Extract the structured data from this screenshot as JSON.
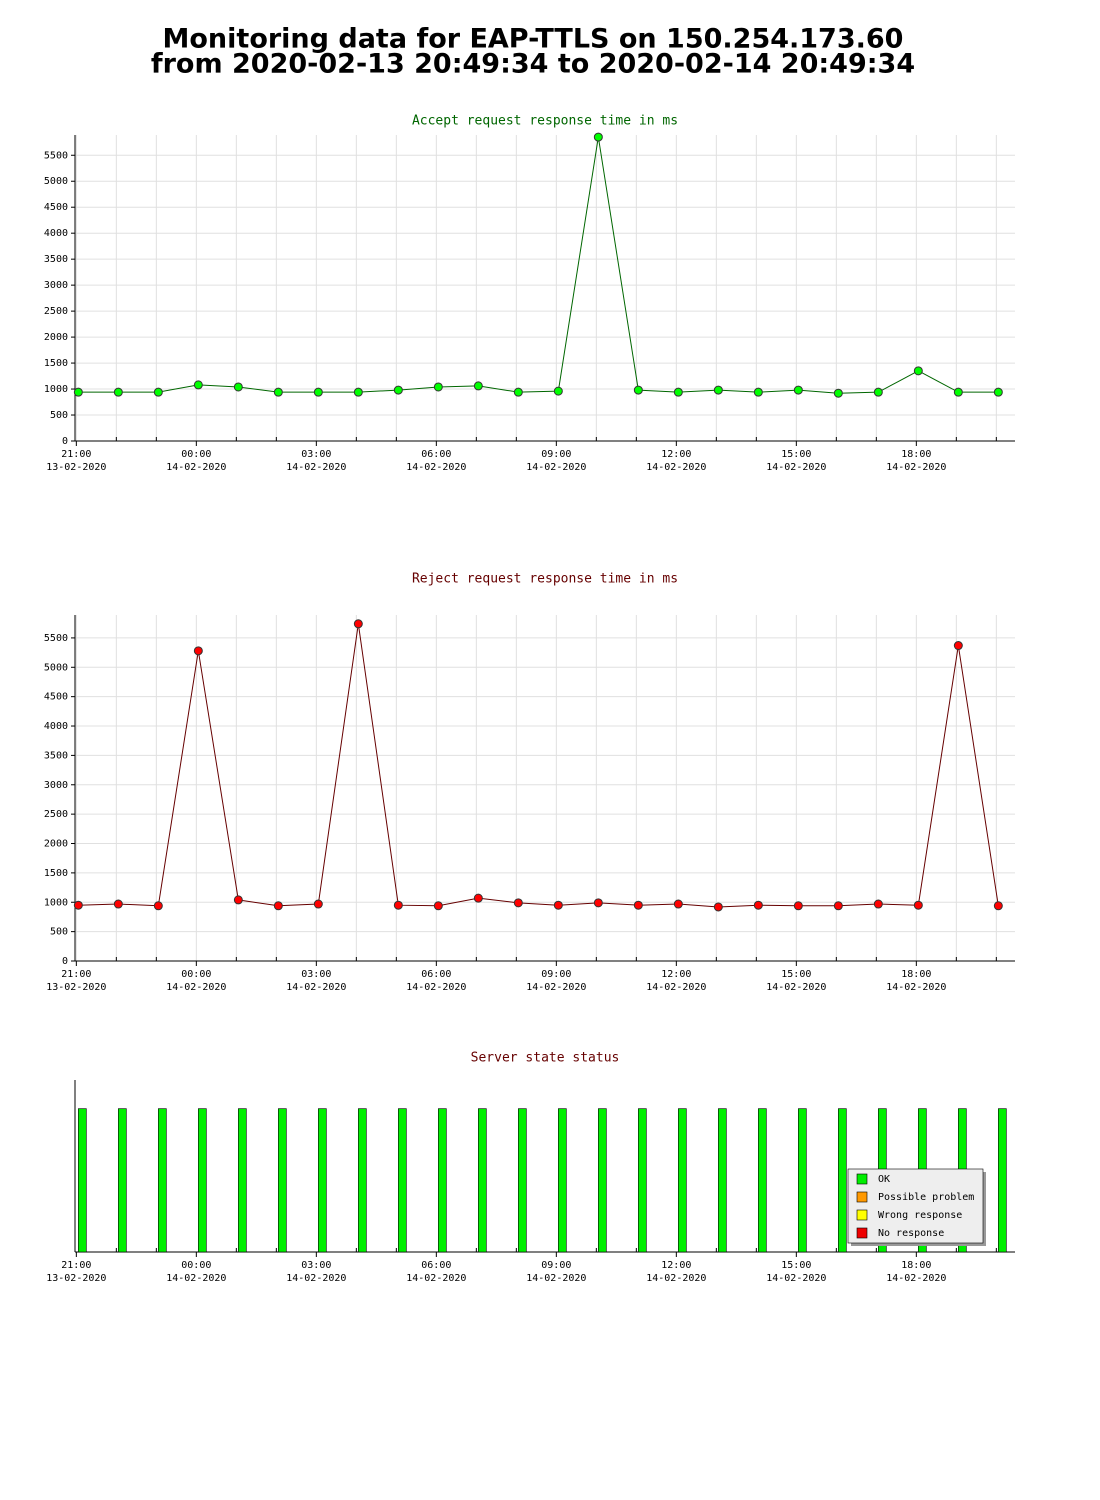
{
  "title": [
    "Monitoring data for EAP-TTLS on 150.254.173.60",
    "from 2020-02-13 20:49:34 to 2020-02-14 20:49:34"
  ],
  "chart_data": [
    {
      "type": "line",
      "title": "Accept request response time in ms",
      "title_color": "#006600",
      "grid": true,
      "x": [
        "2020-02-13 21:03",
        "2020-02-13 22:03",
        "2020-02-13 23:03",
        "2020-02-14 00:03",
        "2020-02-14 01:03",
        "2020-02-14 02:03",
        "2020-02-14 03:03",
        "2020-02-14 04:03",
        "2020-02-14 05:03",
        "2020-02-14 06:03",
        "2020-02-14 07:03",
        "2020-02-14 08:03",
        "2020-02-14 09:03",
        "2020-02-14 10:03",
        "2020-02-14 11:03",
        "2020-02-14 12:03",
        "2020-02-14 13:03",
        "2020-02-14 14:03",
        "2020-02-14 15:03",
        "2020-02-14 16:03",
        "2020-02-14 17:03",
        "2020-02-14 18:03",
        "2020-02-14 19:03",
        "2020-02-14 20:03"
      ],
      "series": [
        {
          "color": "#00ff00",
          "line_color": "#006600",
          "values": [
            940,
            940,
            940,
            1080,
            1040,
            940,
            940,
            940,
            980,
            1040,
            1060,
            940,
            960,
            5850,
            980,
            940,
            980,
            940,
            980,
            920,
            940,
            1350,
            940,
            940
          ]
        }
      ],
      "xlim": [
        "2020-02-13 20:58",
        "2020-02-14 20:28"
      ],
      "xticks": [
        {
          "value": "2020-02-13 21:00",
          "label": [
            "21:00",
            "13-02-2020"
          ]
        },
        {
          "value": "2020-02-14 00:00",
          "label": [
            "00:00",
            "14-02-2020"
          ]
        },
        {
          "value": "2020-02-14 03:00",
          "label": [
            "03:00",
            "14-02-2020"
          ]
        },
        {
          "value": "2020-02-14 06:00",
          "label": [
            "06:00",
            "14-02-2020"
          ]
        },
        {
          "value": "2020-02-14 09:00",
          "label": [
            "09:00",
            "14-02-2020"
          ]
        },
        {
          "value": "2020-02-14 12:00",
          "label": [
            "12:00",
            "14-02-2020"
          ]
        },
        {
          "value": "2020-02-14 15:00",
          "label": [
            "15:00",
            "14-02-2020"
          ]
        },
        {
          "value": "2020-02-14 18:00",
          "label": [
            "18:00",
            "14-02-2020"
          ]
        }
      ],
      "xminorticks": [
        "2020-02-13 22:00",
        "2020-02-13 23:00",
        "2020-02-14 01:00",
        "2020-02-14 02:00",
        "2020-02-14 04:00",
        "2020-02-14 05:00",
        "2020-02-14 07:00",
        "2020-02-14 08:00",
        "2020-02-14 10:00",
        "2020-02-14 11:00",
        "2020-02-14 13:00",
        "2020-02-14 14:00",
        "2020-02-14 16:00",
        "2020-02-14 17:00",
        "2020-02-14 19:00",
        "2020-02-14 20:00"
      ],
      "ylim": [
        0,
        5890
      ],
      "yticks": [
        0,
        500,
        1000,
        1500,
        2000,
        2500,
        3000,
        3500,
        4000,
        4500,
        5000,
        5500
      ]
    },
    {
      "type": "line",
      "title": "Reject request response time in ms",
      "title_color": "#660000",
      "grid": true,
      "x": [
        "2020-02-13 21:03",
        "2020-02-13 22:03",
        "2020-02-13 23:03",
        "2020-02-14 00:03",
        "2020-02-14 01:03",
        "2020-02-14 02:03",
        "2020-02-14 03:03",
        "2020-02-14 04:03",
        "2020-02-14 05:03",
        "2020-02-14 06:03",
        "2020-02-14 07:03",
        "2020-02-14 08:03",
        "2020-02-14 09:03",
        "2020-02-14 10:03",
        "2020-02-14 11:03",
        "2020-02-14 12:03",
        "2020-02-14 13:03",
        "2020-02-14 14:03",
        "2020-02-14 15:03",
        "2020-02-14 16:03",
        "2020-02-14 17:03",
        "2020-02-14 18:03",
        "2020-02-14 19:03",
        "2020-02-14 20:03"
      ],
      "series": [
        {
          "color": "#ff0000",
          "line_color": "#660000",
          "values": [
            950,
            970,
            940,
            5280,
            1040,
            940,
            970,
            5740,
            950,
            940,
            1070,
            990,
            950,
            990,
            950,
            970,
            920,
            950,
            940,
            940,
            970,
            950,
            5370,
            940
          ]
        }
      ],
      "xlim": [
        "2020-02-13 20:58",
        "2020-02-14 20:28"
      ],
      "xticks": [
        {
          "value": "2020-02-13 21:00",
          "label": [
            "21:00",
            "13-02-2020"
          ]
        },
        {
          "value": "2020-02-14 00:00",
          "label": [
            "00:00",
            "14-02-2020"
          ]
        },
        {
          "value": "2020-02-14 03:00",
          "label": [
            "03:00",
            "14-02-2020"
          ]
        },
        {
          "value": "2020-02-14 06:00",
          "label": [
            "06:00",
            "14-02-2020"
          ]
        },
        {
          "value": "2020-02-14 09:00",
          "label": [
            "09:00",
            "14-02-2020"
          ]
        },
        {
          "value": "2020-02-14 12:00",
          "label": [
            "12:00",
            "14-02-2020"
          ]
        },
        {
          "value": "2020-02-14 15:00",
          "label": [
            "15:00",
            "14-02-2020"
          ]
        },
        {
          "value": "2020-02-14 18:00",
          "label": [
            "18:00",
            "14-02-2020"
          ]
        }
      ],
      "xminorticks": [
        "2020-02-13 22:00",
        "2020-02-13 23:00",
        "2020-02-14 01:00",
        "2020-02-14 02:00",
        "2020-02-14 04:00",
        "2020-02-14 05:00",
        "2020-02-14 07:00",
        "2020-02-14 08:00",
        "2020-02-14 10:00",
        "2020-02-14 11:00",
        "2020-02-14 13:00",
        "2020-02-14 14:00",
        "2020-02-14 16:00",
        "2020-02-14 17:00",
        "2020-02-14 19:00",
        "2020-02-14 20:00"
      ],
      "ylim": [
        0,
        5890
      ],
      "yticks": [
        0,
        500,
        1000,
        1500,
        2000,
        2500,
        3000,
        3500,
        4000,
        4500,
        5000,
        5500
      ]
    },
    {
      "type": "bar",
      "title": "Server state status",
      "title_color": "#660000",
      "grid": false,
      "legend": "lower right",
      "x": [
        "2020-02-13 21:03",
        "2020-02-13 22:03",
        "2020-02-13 23:03",
        "2020-02-14 00:03",
        "2020-02-14 01:03",
        "2020-02-14 02:03",
        "2020-02-14 03:03",
        "2020-02-14 04:03",
        "2020-02-14 05:03",
        "2020-02-14 06:03",
        "2020-02-14 07:03",
        "2020-02-14 08:03",
        "2020-02-14 09:03",
        "2020-02-14 10:03",
        "2020-02-14 11:03",
        "2020-02-14 12:03",
        "2020-02-14 13:03",
        "2020-02-14 14:03",
        "2020-02-14 15:03",
        "2020-02-14 16:03",
        "2020-02-14 17:03",
        "2020-02-14 18:03",
        "2020-02-14 19:03",
        "2020-02-14 20:03"
      ],
      "series": [
        {
          "name": "OK",
          "color": "#00ee00",
          "values": [
            1,
            1,
            1,
            1,
            1,
            1,
            1,
            1,
            1,
            1,
            1,
            1,
            1,
            1,
            1,
            1,
            1,
            1,
            1,
            1,
            1,
            1,
            1,
            1
          ]
        },
        {
          "name": "Possible problem",
          "color": "#ff9900",
          "values": [
            0,
            0,
            0,
            0,
            0,
            0,
            0,
            0,
            0,
            0,
            0,
            0,
            0,
            0,
            0,
            0,
            0,
            0,
            0,
            0,
            0,
            0,
            0,
            0
          ]
        },
        {
          "name": "Wrong response",
          "color": "#ffff00",
          "values": [
            0,
            0,
            0,
            0,
            0,
            0,
            0,
            0,
            0,
            0,
            0,
            0,
            0,
            0,
            0,
            0,
            0,
            0,
            0,
            0,
            0,
            0,
            0,
            0
          ]
        },
        {
          "name": "No response",
          "color": "#ee0000",
          "values": [
            0,
            0,
            0,
            0,
            0,
            0,
            0,
            0,
            0,
            0,
            0,
            0,
            0,
            0,
            0,
            0,
            0,
            0,
            0,
            0,
            0,
            0,
            0,
            0
          ]
        }
      ],
      "xlim": [
        "2020-02-13 20:58",
        "2020-02-14 20:28"
      ],
      "xticks": [
        {
          "value": "2020-02-13 21:00",
          "label": [
            "21:00",
            "13-02-2020"
          ]
        },
        {
          "value": "2020-02-14 00:00",
          "label": [
            "00:00",
            "14-02-2020"
          ]
        },
        {
          "value": "2020-02-14 03:00",
          "label": [
            "03:00",
            "14-02-2020"
          ]
        },
        {
          "value": "2020-02-14 06:00",
          "label": [
            "06:00",
            "14-02-2020"
          ]
        },
        {
          "value": "2020-02-14 09:00",
          "label": [
            "09:00",
            "14-02-2020"
          ]
        },
        {
          "value": "2020-02-14 12:00",
          "label": [
            "12:00",
            "14-02-2020"
          ]
        },
        {
          "value": "2020-02-14 15:00",
          "label": [
            "15:00",
            "14-02-2020"
          ]
        },
        {
          "value": "2020-02-14 18:00",
          "label": [
            "18:00",
            "14-02-2020"
          ]
        }
      ],
      "xminorticks": [
        "2020-02-13 22:00",
        "2020-02-13 23:00",
        "2020-02-14 01:00",
        "2020-02-14 02:00",
        "2020-02-14 04:00",
        "2020-02-14 05:00",
        "2020-02-14 07:00",
        "2020-02-14 08:00",
        "2020-02-14 10:00",
        "2020-02-14 11:00",
        "2020-02-14 13:00",
        "2020-02-14 14:00",
        "2020-02-14 16:00",
        "2020-02-14 17:00",
        "2020-02-14 19:00",
        "2020-02-14 20:00"
      ],
      "ylim": [
        0,
        1.2
      ]
    }
  ]
}
